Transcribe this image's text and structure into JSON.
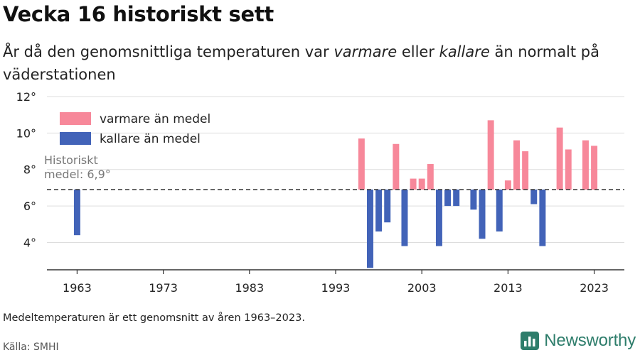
{
  "header": {
    "title": "Vecka 16 historiskt sett",
    "subtitle_before": "År då den genomsnittliga temperaturen var ",
    "subtitle_warm": "varmare",
    "subtitle_mid": " eller ",
    "subtitle_cold": "kallare",
    "subtitle_after": " än normalt på väderstationen"
  },
  "footer": {
    "note": "Medeltemperaturen är ett genomsnitt av åren 1963–2023.",
    "source": "Källa: SMHI",
    "brand": "Newsworthy"
  },
  "colors": {
    "warmer": "#f7889a",
    "colder": "#4263b8",
    "baseline": "#333333",
    "grid": "#dddddd",
    "brand": "#2e7d6b"
  },
  "chart_data": {
    "type": "bar",
    "baseline": 6.9,
    "baseline_label": [
      "Historiskt",
      "medel: 6,9°"
    ],
    "legend": [
      {
        "key": "warmer",
        "label": "varmare än medel"
      },
      {
        "key": "colder",
        "label": "kallare än medel"
      }
    ],
    "legend_position": "top-left",
    "grid": true,
    "ylim": [
      2.5,
      12
    ],
    "yticks": [
      4,
      6,
      8,
      10,
      12
    ],
    "ytick_labels": [
      "4°",
      "6°",
      "8°",
      "10°",
      "12°"
    ],
    "xlim": [
      1959.5,
      2026.5
    ],
    "xticks": [
      1963,
      1973,
      1983,
      1993,
      2003,
      2013,
      2023
    ],
    "xtick_labels": [
      "1963",
      "1973",
      "1983",
      "1993",
      "2003",
      "2013",
      "2023"
    ],
    "values": [
      {
        "year": 1963,
        "temp": 4.4
      },
      {
        "year": 1996,
        "temp": 9.7
      },
      {
        "year": 1997,
        "temp": 2.6
      },
      {
        "year": 1998,
        "temp": 4.6
      },
      {
        "year": 1999,
        "temp": 5.1
      },
      {
        "year": 2000,
        "temp": 9.4
      },
      {
        "year": 2001,
        "temp": 3.8
      },
      {
        "year": 2002,
        "temp": 7.5
      },
      {
        "year": 2003,
        "temp": 7.5
      },
      {
        "year": 2004,
        "temp": 8.3
      },
      {
        "year": 2005,
        "temp": 3.8
      },
      {
        "year": 2006,
        "temp": 6.0
      },
      {
        "year": 2007,
        "temp": 6.0
      },
      {
        "year": 2009,
        "temp": 5.8
      },
      {
        "year": 2010,
        "temp": 4.2
      },
      {
        "year": 2011,
        "temp": 10.7
      },
      {
        "year": 2012,
        "temp": 4.6
      },
      {
        "year": 2013,
        "temp": 7.4
      },
      {
        "year": 2014,
        "temp": 9.6
      },
      {
        "year": 2015,
        "temp": 9.0
      },
      {
        "year": 2016,
        "temp": 6.1
      },
      {
        "year": 2017,
        "temp": 3.8
      },
      {
        "year": 2019,
        "temp": 10.3
      },
      {
        "year": 2020,
        "temp": 9.1
      },
      {
        "year": 2022,
        "temp": 9.6
      },
      {
        "year": 2023,
        "temp": 9.3
      }
    ]
  }
}
